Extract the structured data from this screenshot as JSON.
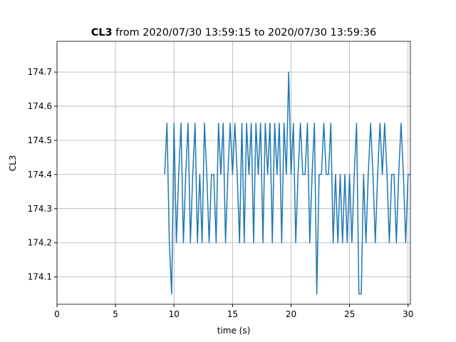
{
  "chart_data": {
    "type": "line",
    "title": {
      "bold": "CL3",
      "rest": "from 2020/07/30 13:59:15 to 2020/07/30 13:59:36"
    },
    "xlabel": "time (s)",
    "ylabel": "CL3",
    "xlim": [
      0,
      30.2
    ],
    "ylim": [
      174.02,
      174.79
    ],
    "xticks": [
      0,
      5,
      10,
      15,
      20,
      25,
      30
    ],
    "yticks": [
      174.1,
      174.2,
      174.3,
      174.4,
      174.5,
      174.6,
      174.7
    ],
    "grid": true,
    "x": [
      9.2,
      9.4,
      9.6,
      9.8,
      10.0,
      10.2,
      10.4,
      10.6,
      10.8,
      11.0,
      11.2,
      11.4,
      11.6,
      11.8,
      12.0,
      12.2,
      12.4,
      12.6,
      12.8,
      13.0,
      13.2,
      13.4,
      13.6,
      13.8,
      14.0,
      14.2,
      14.4,
      14.6,
      14.8,
      15.0,
      15.2,
      15.4,
      15.6,
      15.8,
      16.0,
      16.2,
      16.4,
      16.6,
      16.8,
      17.0,
      17.2,
      17.4,
      17.6,
      17.8,
      18.0,
      18.2,
      18.4,
      18.6,
      18.8,
      19.0,
      19.2,
      19.4,
      19.6,
      19.8,
      20.0,
      20.2,
      20.4,
      20.6,
      20.8,
      21.0,
      21.2,
      21.4,
      21.6,
      21.8,
      22.0,
      22.2,
      22.4,
      22.6,
      22.8,
      23.0,
      23.2,
      23.4,
      23.6,
      23.8,
      24.0,
      24.2,
      24.4,
      24.6,
      24.8,
      25.0,
      25.2,
      25.4,
      25.6,
      25.8,
      26.0,
      26.2,
      26.4,
      26.6,
      26.8,
      27.0,
      27.2,
      27.4,
      27.6,
      27.8,
      28.0,
      28.2,
      28.4,
      28.6,
      28.8,
      29.0,
      29.2,
      29.4,
      29.6,
      29.8,
      30.0,
      30.2
    ],
    "series": [
      {
        "name": "CL3",
        "color": "#1f77b4",
        "values": [
          174.4,
          174.55,
          174.2,
          174.05,
          174.55,
          174.2,
          174.4,
          174.55,
          174.2,
          174.4,
          174.55,
          174.2,
          174.4,
          174.55,
          174.2,
          174.4,
          174.2,
          174.55,
          174.4,
          174.2,
          174.4,
          174.4,
          174.2,
          174.55,
          174.4,
          174.55,
          174.2,
          174.4,
          174.55,
          174.4,
          174.55,
          174.4,
          174.2,
          174.55,
          174.2,
          174.55,
          174.4,
          174.55,
          174.2,
          174.55,
          174.4,
          174.55,
          174.2,
          174.55,
          174.4,
          174.55,
          174.2,
          174.55,
          174.4,
          174.55,
          174.2,
          174.55,
          174.4,
          174.7,
          174.4,
          174.55,
          174.2,
          174.4,
          174.55,
          174.4,
          174.4,
          174.55,
          174.2,
          174.4,
          174.55,
          174.05,
          174.4,
          174.4,
          174.55,
          174.4,
          174.4,
          174.55,
          174.2,
          174.4,
          174.2,
          174.4,
          174.2,
          174.4,
          174.2,
          174.4,
          174.2,
          174.4,
          174.55,
          174.05,
          174.05,
          174.4,
          174.2,
          174.4,
          174.55,
          174.4,
          174.2,
          174.4,
          174.55,
          174.4,
          174.55,
          174.4,
          174.2,
          174.4,
          174.4,
          174.2,
          174.4,
          174.55,
          174.4,
          174.2,
          174.4,
          174.4
        ]
      }
    ]
  }
}
